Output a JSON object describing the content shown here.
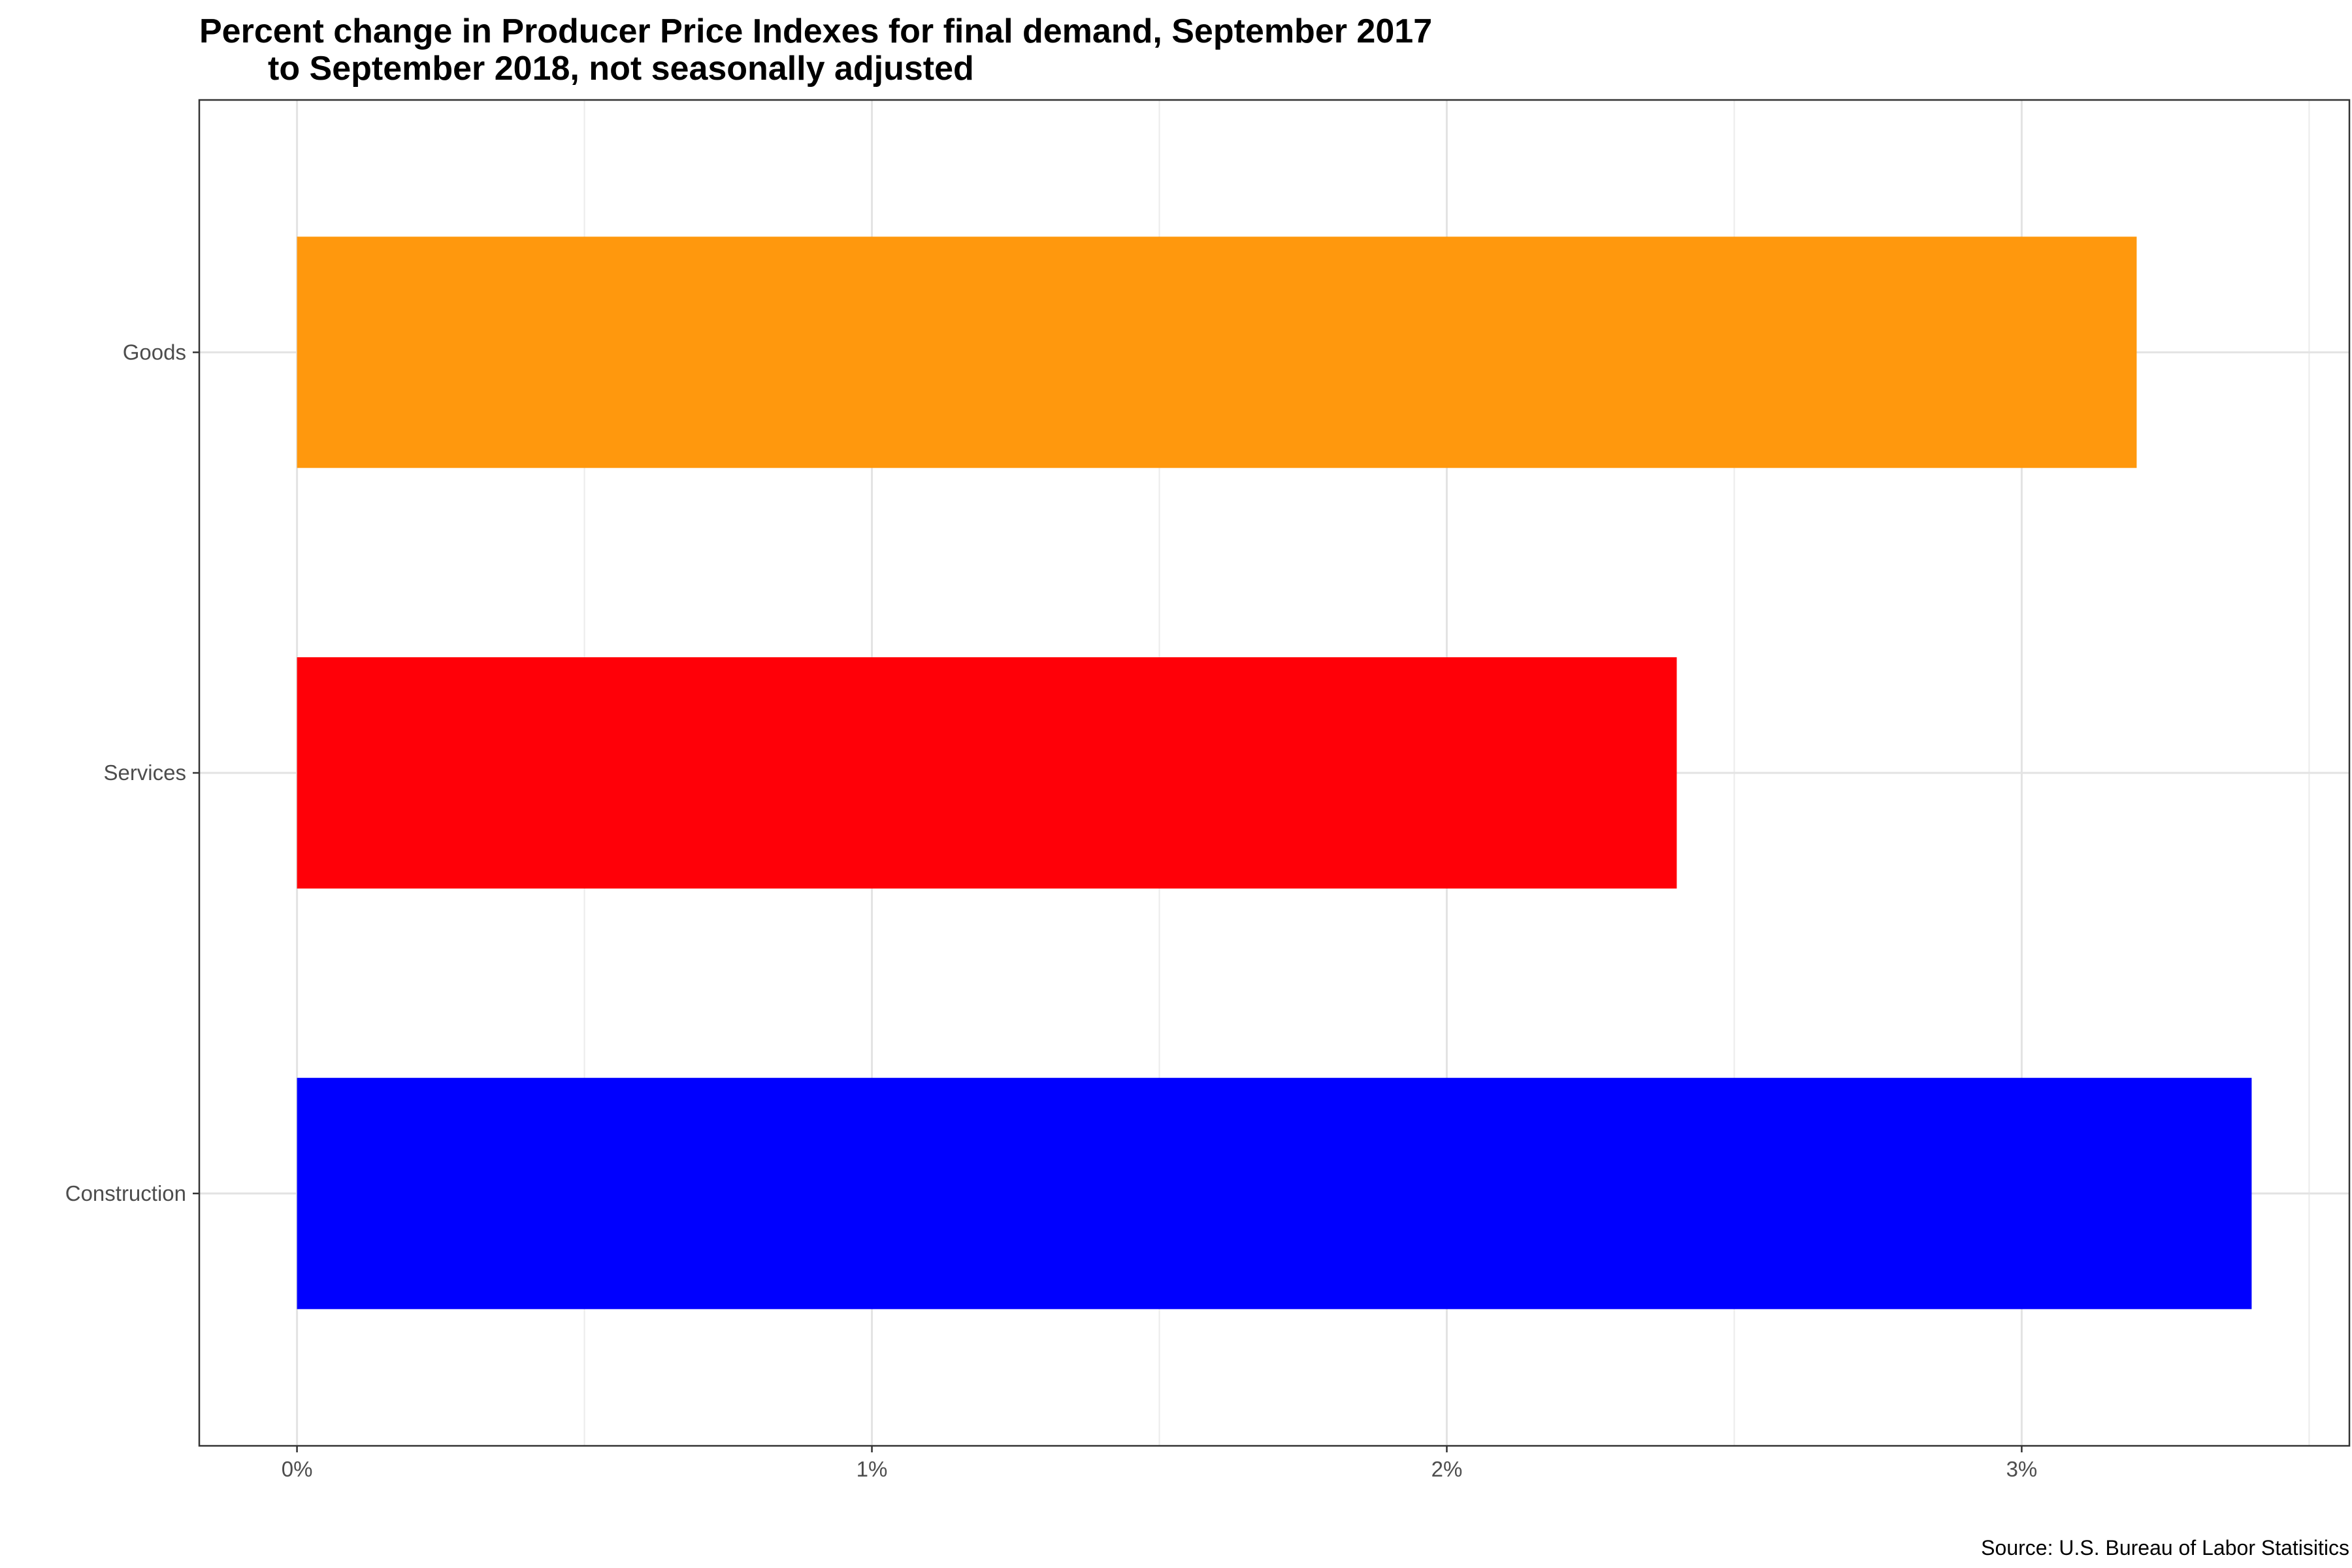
{
  "chart_data": {
    "type": "bar",
    "orientation": "horizontal",
    "title": "Percent change in Producer Price Indexes for final demand, September 2017",
    "title_line2": "to September 2018, not seasonally adjusted",
    "caption": "Source: U.S. Bureau of Labor Statisitics",
    "xlabel": "",
    "ylabel": "",
    "categories": [
      "Goods",
      "Services",
      "Construction"
    ],
    "values": [
      3.2,
      2.4,
      3.4
    ],
    "colors": [
      "#FF980D",
      "#FF0008",
      "#0000FF"
    ],
    "x_ticks": [
      0,
      1,
      2,
      3
    ],
    "x_tick_labels": [
      "0%",
      "1%",
      "2%",
      "3%"
    ],
    "xlim": [
      -0.17,
      3.57
    ],
    "grid": true,
    "legend": "none"
  }
}
